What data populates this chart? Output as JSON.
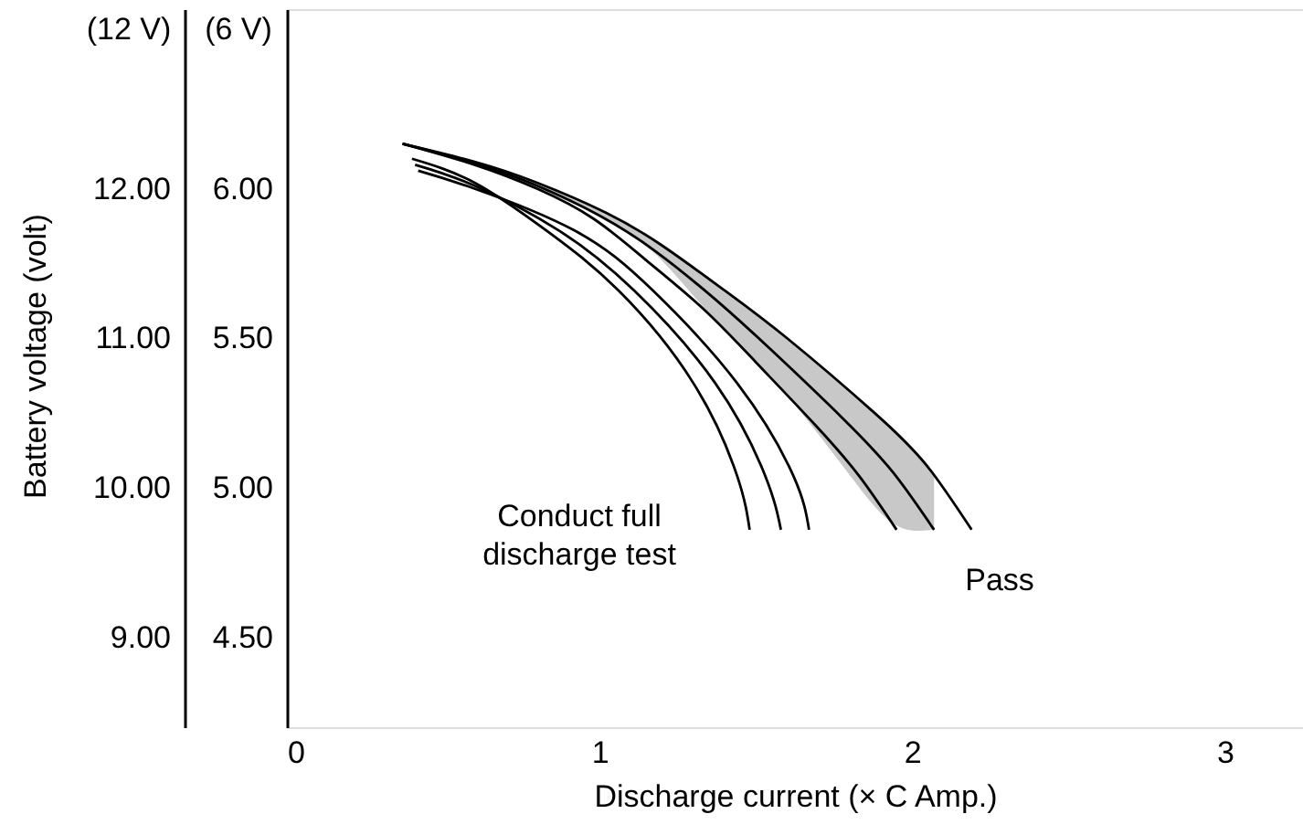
{
  "chart_data": {
    "type": "line",
    "xlabel": "Discharge current (× C Amp.)",
    "ylabel": "(6 V)",
    "y2label": "(12 V)",
    "xlim": [
      0,
      3.25
    ],
    "xticks": [
      0,
      1,
      2,
      3
    ],
    "ylim": [
      4.2,
      6.6
    ],
    "yticks": [
      {
        "value": 4.5,
        "label": "4.50"
      },
      {
        "value": 5,
        "label": "5.00"
      },
      {
        "value": 5.5,
        "label": "5.50"
      },
      {
        "value": 6,
        "label": "6.00"
      }
    ],
    "y2lim": [
      8.4,
      13.2
    ],
    "y2ticks": [
      {
        "value": 9,
        "label": "9.00"
      },
      {
        "value": 10,
        "label": "10.00"
      },
      {
        "value": 11,
        "label": "11.00"
      },
      {
        "value": 12,
        "label": "12.00"
      }
    ],
    "grid": false,
    "marker": "none",
    "line_style": "solid",
    "series": [
      {
        "color": "#000000",
        "x": [
          0.4,
          0.6,
          0.83,
          1.06,
          1.3,
          1.44,
          1.48
        ],
        "values": [
          6.1,
          6.02,
          5.86,
          5.66,
          5.35,
          5.04,
          4.86
        ]
      },
      {
        "color": "#000000",
        "x": [
          0.41,
          0.6,
          0.87,
          1.11,
          1.37,
          1.53,
          1.58
        ],
        "values": [
          6.08,
          6.01,
          5.86,
          5.66,
          5.35,
          5.04,
          4.86
        ]
      },
      {
        "color": "#000000",
        "x": [
          0.42,
          0.6,
          0.92,
          1.17,
          1.44,
          1.62,
          1.67
        ],
        "values": [
          6.06,
          6.0,
          5.86,
          5.66,
          5.35,
          5.04,
          4.86
        ]
      },
      {
        "color": "#000000",
        "x": [
          0.37,
          0.6,
          0.8,
          0.98,
          1.15,
          1.33,
          1.5,
          1.69,
          1.83,
          1.95
        ],
        "values": [
          6.15,
          6.08,
          6.0,
          5.9,
          5.76,
          5.6,
          5.42,
          5.21,
          5.04,
          4.86
        ]
      },
      {
        "color": "#000000",
        "x": [
          0.37,
          0.6,
          0.8,
          1.0,
          1.18,
          1.37,
          1.55,
          1.78,
          1.94,
          2.07
        ],
        "values": [
          6.15,
          6.085,
          6.01,
          5.91,
          5.79,
          5.63,
          5.46,
          5.23,
          5.05,
          4.86
        ],
        "lower": [
          6.15,
          6.08,
          6.0,
          5.91,
          5.78,
          5.56,
          5.37,
          5.07,
          4.88,
          4.86
        ],
        "upper": [
          6.15,
          6.09,
          6.02,
          5.93,
          5.82,
          5.68,
          5.54,
          5.34,
          5.19,
          5.05
        ]
      },
      {
        "color": "#000000",
        "x": [
          0.37,
          0.6,
          0.8,
          1.02,
          1.2,
          1.4,
          1.6,
          1.88,
          2.05,
          2.19
        ],
        "values": [
          6.15,
          6.09,
          6.02,
          5.92,
          5.81,
          5.66,
          5.5,
          5.25,
          5.07,
          4.86
        ]
      }
    ],
    "annotations": [
      "Conduct full\ndischarge test",
      "Pass",
      "Battery voltage (volt)"
    ]
  }
}
